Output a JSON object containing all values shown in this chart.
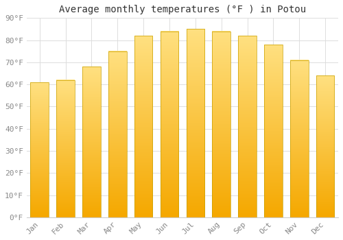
{
  "title": "Average monthly temperatures (°F ) in Potou",
  "months": [
    "Jan",
    "Feb",
    "Mar",
    "Apr",
    "May",
    "Jun",
    "Jul",
    "Aug",
    "Sep",
    "Oct",
    "Nov",
    "Dec"
  ],
  "values": [
    61,
    62,
    68,
    75,
    82,
    84,
    85,
    84,
    82,
    78,
    71,
    64
  ],
  "bar_color_bottom": "#F5A800",
  "bar_color_top": "#FFE080",
  "bar_edge_color": "#C8A000",
  "background_color": "#ffffff",
  "grid_color": "#dddddd",
  "ylim": [
    0,
    90
  ],
  "yticks": [
    0,
    10,
    20,
    30,
    40,
    50,
    60,
    70,
    80,
    90
  ],
  "ytick_labels": [
    "0°F",
    "10°F",
    "20°F",
    "30°F",
    "40°F",
    "50°F",
    "60°F",
    "70°F",
    "80°F",
    "90°F"
  ],
  "title_fontsize": 10,
  "tick_fontsize": 8,
  "title_font": "monospace",
  "tick_font": "monospace",
  "bar_width": 0.7
}
